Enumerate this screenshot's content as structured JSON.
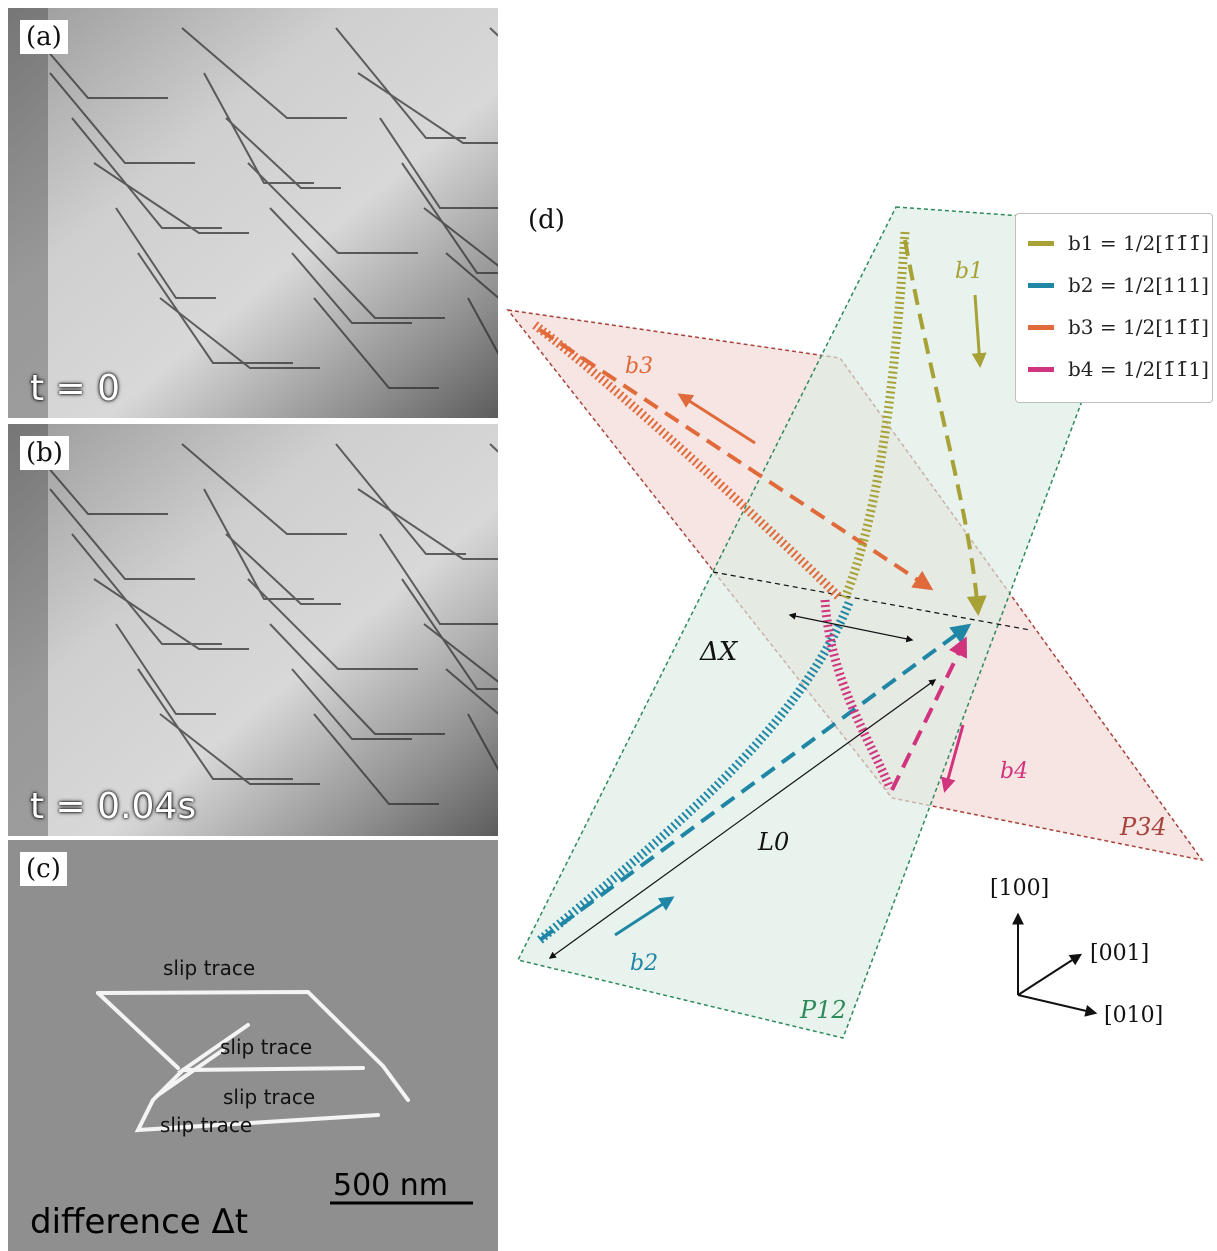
{
  "panels": {
    "a": {
      "tag": "(a)",
      "time": "t = 0"
    },
    "b": {
      "tag": "(b)",
      "time": "t = 0.04s"
    },
    "c": {
      "tag": "(c)",
      "caption": "difference Δt",
      "scale_bar": "500 nm",
      "slip_traces": [
        "slip trace",
        "slip trace",
        "slip trace",
        "slip trace"
      ]
    }
  },
  "diagram": {
    "tag": "(d)",
    "planes": {
      "p12": "P12",
      "p34": "P34"
    },
    "dims": {
      "delta_x": "ΔX",
      "l0": "L0"
    },
    "burgers_labels": {
      "b1": "b1",
      "b2": "b2",
      "b3": "b3",
      "b4": "b4"
    },
    "legend": [
      {
        "key": "b1",
        "text": "b1 = 1/2[1̄1̄1̄]",
        "color": "#a8a136"
      },
      {
        "key": "b2",
        "text": "b2 = 1/2[111]",
        "color": "#1f86a6"
      },
      {
        "key": "b3",
        "text": "b3 = 1/2[11̄1̄]",
        "color": "#e06a3a"
      },
      {
        "key": "b4",
        "text": "b4 = 1/2[1̄1̄1]",
        "color": "#d1337e"
      }
    ],
    "axes": {
      "x100": "[100]",
      "x001": "[001]",
      "x010": "[010]"
    }
  },
  "colors": {
    "plane_green": "#2e8a5c",
    "plane_red": "#a8423d",
    "b1": "#a8a136",
    "b2": "#1f86a6",
    "b3": "#e06a3a",
    "b4": "#d1337e"
  }
}
